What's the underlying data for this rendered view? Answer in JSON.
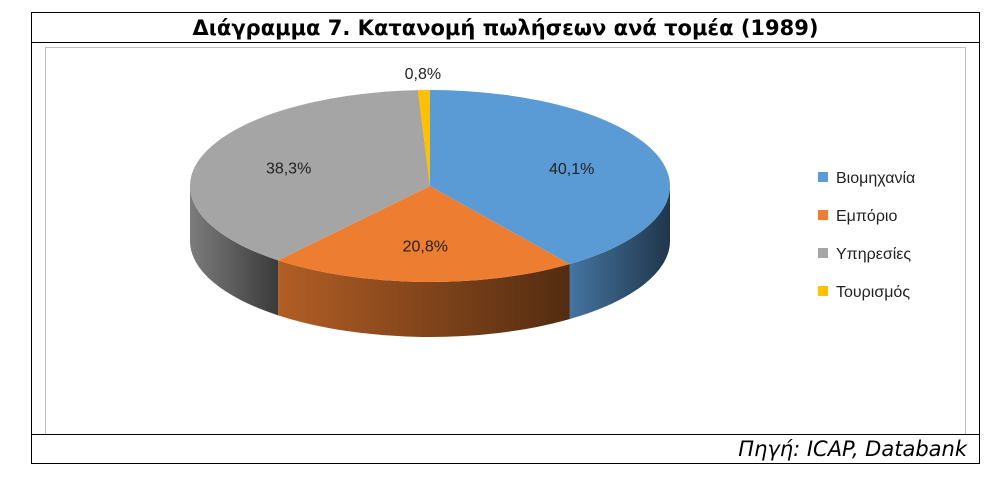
{
  "header": {
    "title": "Διάγραμμα 7. Κατανομή πωλήσεων ανά τομέα (1989)"
  },
  "footer": {
    "source": "Πηγή: ICAP, Databank"
  },
  "chart_data": {
    "type": "pie",
    "style": "3d",
    "legend_position": "right",
    "categories": [
      "Βιομηχανία",
      "Εμπόριο",
      "Υπηρεσίες",
      "Τουρισμός"
    ],
    "values": [
      40.1,
      20.8,
      38.3,
      0.8
    ],
    "data_labels": [
      "40,1%",
      "20,8%",
      "38,3%",
      "0,8%"
    ],
    "colors": [
      "#5b9bd5",
      "#ed7d31",
      "#a5a5a5",
      "#ffc000"
    ]
  }
}
